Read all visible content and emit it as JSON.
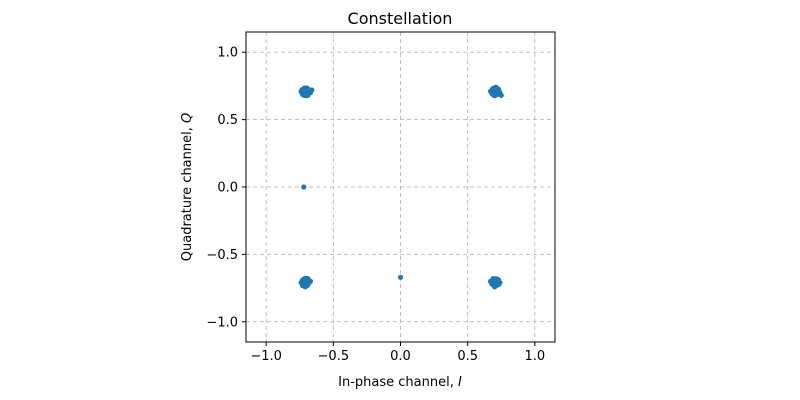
{
  "chart_data": {
    "type": "scatter",
    "title": "Constellation",
    "xlabel_prefix": "In-phase channel, ",
    "xlabel_var": "I",
    "ylabel_prefix": "Quadrature channel, ",
    "ylabel_var": "Q",
    "xlim": [
      -1.15,
      1.15
    ],
    "ylim": [
      -1.15,
      1.15
    ],
    "xticks": [
      -1.0,
      -0.5,
      0.0,
      0.5,
      1.0
    ],
    "xtick_labels": [
      "−1.0",
      "−0.5",
      "0.0",
      "0.5",
      "1.0"
    ],
    "yticks": [
      -1.0,
      -0.5,
      0.0,
      0.5,
      1.0
    ],
    "ytick_labels": [
      "−1.0",
      "−0.5",
      "0.0",
      "0.5",
      "1.0"
    ],
    "grid": true,
    "marker_color": "#1f77b4",
    "clusters": [
      {
        "center": [
          -0.707,
          0.707
        ],
        "spread": 0.03
      },
      {
        "center": [
          0.707,
          0.707
        ],
        "spread": 0.03
      },
      {
        "center": [
          -0.707,
          -0.707
        ],
        "spread": 0.03
      },
      {
        "center": [
          0.707,
          -0.707
        ],
        "spread": 0.03
      }
    ],
    "points": [
      [
        -0.72,
        0.7
      ],
      [
        -0.7,
        0.72
      ],
      [
        -0.68,
        0.71
      ],
      [
        -0.73,
        0.69
      ],
      [
        -0.69,
        0.68
      ],
      [
        -0.71,
        0.73
      ],
      [
        -0.67,
        0.7
      ],
      [
        -0.74,
        0.71
      ],
      [
        -0.7,
        0.69
      ],
      [
        -0.66,
        0.72
      ],
      [
        0.69,
        0.73
      ],
      [
        0.71,
        0.71
      ],
      [
        0.73,
        0.69
      ],
      [
        0.68,
        0.7
      ],
      [
        0.72,
        0.72
      ],
      [
        0.7,
        0.68
      ],
      [
        0.74,
        0.7
      ],
      [
        0.67,
        0.71
      ],
      [
        0.75,
        0.68
      ],
      [
        0.71,
        0.74
      ],
      [
        -0.71,
        -0.69
      ],
      [
        -0.7,
        -0.72
      ],
      [
        -0.72,
        -0.7
      ],
      [
        -0.68,
        -0.71
      ],
      [
        -0.73,
        -0.73
      ],
      [
        -0.69,
        -0.68
      ],
      [
        -0.71,
        -0.74
      ],
      [
        -0.67,
        -0.7
      ],
      [
        -0.74,
        -0.71
      ],
      [
        -0.7,
        -0.7
      ],
      [
        0.7,
        -0.7
      ],
      [
        0.72,
        -0.71
      ],
      [
        0.68,
        -0.72
      ],
      [
        0.73,
        -0.69
      ],
      [
        0.71,
        -0.73
      ],
      [
        0.69,
        -0.68
      ],
      [
        0.74,
        -0.71
      ],
      [
        0.67,
        -0.7
      ],
      [
        0.72,
        -0.72
      ],
      [
        0.7,
        -0.74
      ],
      [
        -0.72,
        0.0
      ],
      [
        0.0,
        -0.67
      ]
    ]
  }
}
